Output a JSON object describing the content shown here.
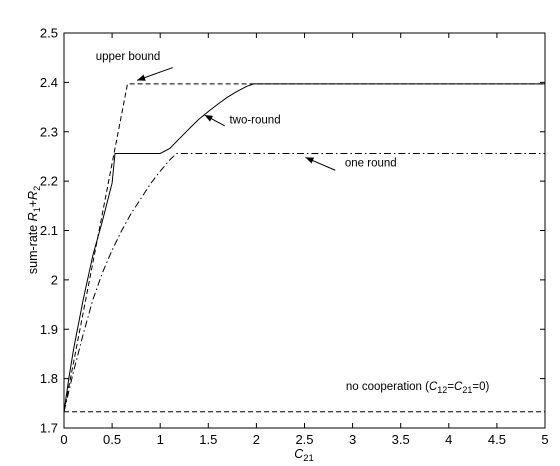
{
  "chart_data": {
    "type": "line",
    "xlabel": {
      "base": "C",
      "sub": "21"
    },
    "ylabel": {
      "prefix": "sum-rate ",
      "r1": "R",
      "s1": "1",
      "plus": "+",
      "r2": "R",
      "s2": "2"
    },
    "xlim": [
      0,
      5
    ],
    "ylim": [
      1.7,
      2.5
    ],
    "xticks": [
      "0",
      "0.5",
      "1",
      "1.5",
      "2",
      "2.5",
      "3",
      "3.5",
      "4",
      "4.5",
      "5"
    ],
    "yticks": [
      "1.7",
      "1.8",
      "1.9",
      "2",
      "2.1",
      "2.2",
      "2.3",
      "2.4",
      "2.5"
    ],
    "grid": false,
    "series": [
      {
        "style": "dashed",
        "points": [
          [
            0,
            1.733
          ],
          [
            0.66,
            2.397
          ],
          [
            5,
            2.397
          ]
        ]
      },
      {
        "style": "solid",
        "points": [
          [
            0,
            1.733
          ],
          [
            0.05,
            1.8
          ],
          [
            0.1,
            1.86
          ],
          [
            0.2,
            1.96
          ],
          [
            0.3,
            2.05
          ],
          [
            0.4,
            2.12
          ],
          [
            0.5,
            2.196
          ],
          [
            0.53,
            2.256
          ],
          [
            1.0,
            2.256
          ],
          [
            1.1,
            2.266
          ],
          [
            1.2,
            2.286
          ],
          [
            1.3,
            2.306
          ],
          [
            1.4,
            2.325
          ],
          [
            1.5,
            2.341
          ],
          [
            1.6,
            2.356
          ],
          [
            1.7,
            2.37
          ],
          [
            1.8,
            2.382
          ],
          [
            1.9,
            2.392
          ],
          [
            1.97,
            2.397
          ],
          [
            5,
            2.397
          ]
        ]
      },
      {
        "style": "dashdot",
        "points": [
          [
            0,
            1.733
          ],
          [
            0.1,
            1.815
          ],
          [
            0.2,
            1.89
          ],
          [
            0.3,
            1.96
          ],
          [
            0.4,
            2.015
          ],
          [
            0.5,
            2.06
          ],
          [
            0.6,
            2.1
          ],
          [
            0.7,
            2.135
          ],
          [
            0.8,
            2.165
          ],
          [
            0.9,
            2.195
          ],
          [
            1.0,
            2.22
          ],
          [
            1.1,
            2.243
          ],
          [
            1.17,
            2.256
          ],
          [
            5,
            2.256
          ]
        ]
      },
      {
        "style": "dashed",
        "points": [
          [
            0,
            1.733
          ],
          [
            5,
            1.733
          ]
        ]
      }
    ],
    "annotations": [
      {
        "id": "upper",
        "text": "upper bound",
        "tx": 0.33,
        "ty": 2.445,
        "ax": 1.13,
        "ay": 2.43,
        "hx": 0.76,
        "hy": 2.404
      },
      {
        "id": "two",
        "text": "two-round",
        "tx": 1.72,
        "ty": 2.317,
        "ax": 1.67,
        "ay": 2.312,
        "hx": 1.46,
        "hy": 2.334
      },
      {
        "id": "one",
        "text": "one round",
        "tx": 2.92,
        "ty": 2.23,
        "ax": 2.82,
        "ay": 2.222,
        "hx": 2.51,
        "hy": 2.248
      }
    ],
    "no_coop": {
      "a": "no cooperation (",
      "c1": "C",
      "s1": "12",
      "eq1": "=",
      "c2": "C",
      "s2": "21",
      "eq2": "=0)",
      "tx": 2.93,
      "ty": 1.777
    }
  }
}
